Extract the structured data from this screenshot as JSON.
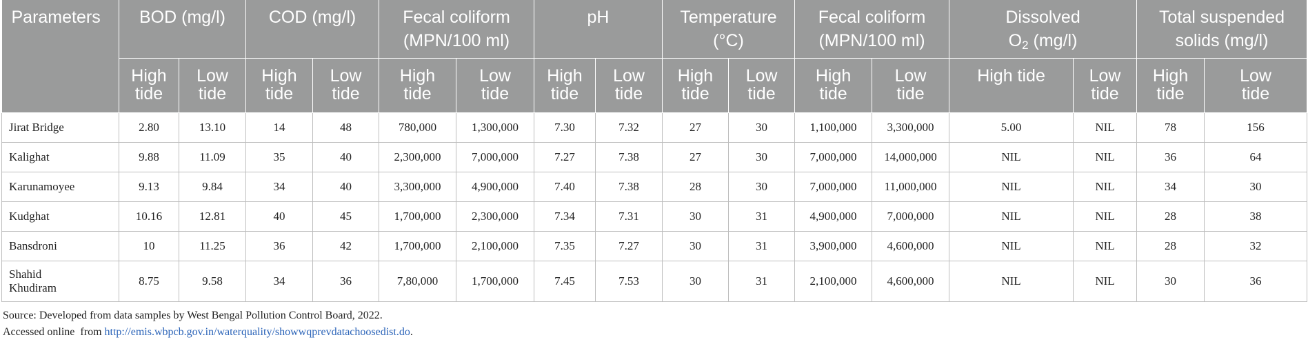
{
  "header": {
    "parameters": "Parameters",
    "bod": "BOD (mg/l)",
    "cod": "COD (mg/l)",
    "fecal_1_line1": "Fecal coliform",
    "fecal_1_line2": "(MPN/100 ml)",
    "ph": "pH",
    "temp_line1": "Temperature",
    "temp_line2": "(°C)",
    "fecal_2_line1": "Fecal coliform",
    "fecal_2_line2": "(MPN/100 ml)",
    "do_line1": "Dissolved",
    "do_line2_prefix": "O",
    "do_line2_sub": "2",
    "do_line2_suffix": " (mg/l)",
    "tss_line1": "Total suspended",
    "tss_line2": "solids (mg/l)",
    "high_line1": "High",
    "high_line2": "tide",
    "low_line1": "Low",
    "low_line2": "tide",
    "high_tide_single": "High tide"
  },
  "rows": [
    {
      "name": "Jirat Bridge",
      "bod_h": "2.80",
      "bod_l": "13.10",
      "cod_h": "14",
      "cod_l": "48",
      "fc1_h": "780,000",
      "fc1_l": "1,300,000",
      "ph_h": "7.30",
      "ph_l": "7.32",
      "t_h": "27",
      "t_l": "30",
      "fc2_h": "1,100,000",
      "fc2_l": "3,300,000",
      "do_h": "5.00",
      "do_l": "NIL",
      "tss_h": "78",
      "tss_l": "156"
    },
    {
      "name": "Kalighat",
      "bod_h": "9.88",
      "bod_l": "11.09",
      "cod_h": "35",
      "cod_l": "40",
      "fc1_h": "2,300,000",
      "fc1_l": "7,000,000",
      "ph_h": "7.27",
      "ph_l": "7.38",
      "t_h": "27",
      "t_l": "30",
      "fc2_h": "7,000,000",
      "fc2_l": "14,000,000",
      "do_h": "NIL",
      "do_l": "NIL",
      "tss_h": "36",
      "tss_l": "64"
    },
    {
      "name": "Karunamoyee",
      "bod_h": "9.13",
      "bod_l": "9.84",
      "cod_h": "34",
      "cod_l": "40",
      "fc1_h": "3,300,000",
      "fc1_l": "4,900,000",
      "ph_h": "7.40",
      "ph_l": "7.38",
      "t_h": "28",
      "t_l": "30",
      "fc2_h": "7,000,000",
      "fc2_l": "11,000,000",
      "do_h": "NIL",
      "do_l": "NIL",
      "tss_h": "34",
      "tss_l": "30"
    },
    {
      "name": "Kudghat",
      "bod_h": "10.16",
      "bod_l": "12.81",
      "cod_h": "40",
      "cod_l": "45",
      "fc1_h": "1,700,000",
      "fc1_l": "2,300,000",
      "ph_h": "7.34",
      "ph_l": "7.31",
      "t_h": "30",
      "t_l": "31",
      "fc2_h": "4,900,000",
      "fc2_l": "7,000,000",
      "do_h": "NIL",
      "do_l": "NIL",
      "tss_h": "28",
      "tss_l": "38"
    },
    {
      "name": "Bansdroni",
      "bod_h": "10",
      "bod_l": "11.25",
      "cod_h": "36",
      "cod_l": "42",
      "fc1_h": "1,700,000",
      "fc1_l": "2,100,000",
      "ph_h": "7.35",
      "ph_l": "7.27",
      "t_h": "30",
      "t_l": "31",
      "fc2_h": "3,900,000",
      "fc2_l": "4,600,000",
      "do_h": "NIL",
      "do_l": "NIL",
      "tss_h": "28",
      "tss_l": "32"
    },
    {
      "name_line1": "Shahid",
      "name_line2": "Khudiram",
      "bod_h": "8.75",
      "bod_l": "9.58",
      "cod_h": "34",
      "cod_l": "36",
      "fc1_h": "7,80,000",
      "fc1_l": "1,700,000",
      "ph_h": "7.45",
      "ph_l": "7.53",
      "t_h": "30",
      "t_l": "31",
      "fc2_h": "2,100,000",
      "fc2_l": "4,600,000",
      "do_h": "NIL",
      "do_l": "NIL",
      "tss_h": "30",
      "tss_l": "36"
    }
  ],
  "notes": {
    "source": "Source: Developed from data samples by West Bengal Pollution Control Board, 2022.",
    "accessed_prefix": "Accessed online  from ",
    "link_text": "http://emis.wbpcb.gov.in/waterquality/showwqprevdatachoosedist.do",
    "accessed_suffix": "."
  },
  "colors": {
    "header_bg": "#9a9b9b",
    "link": "#2a63b8"
  }
}
